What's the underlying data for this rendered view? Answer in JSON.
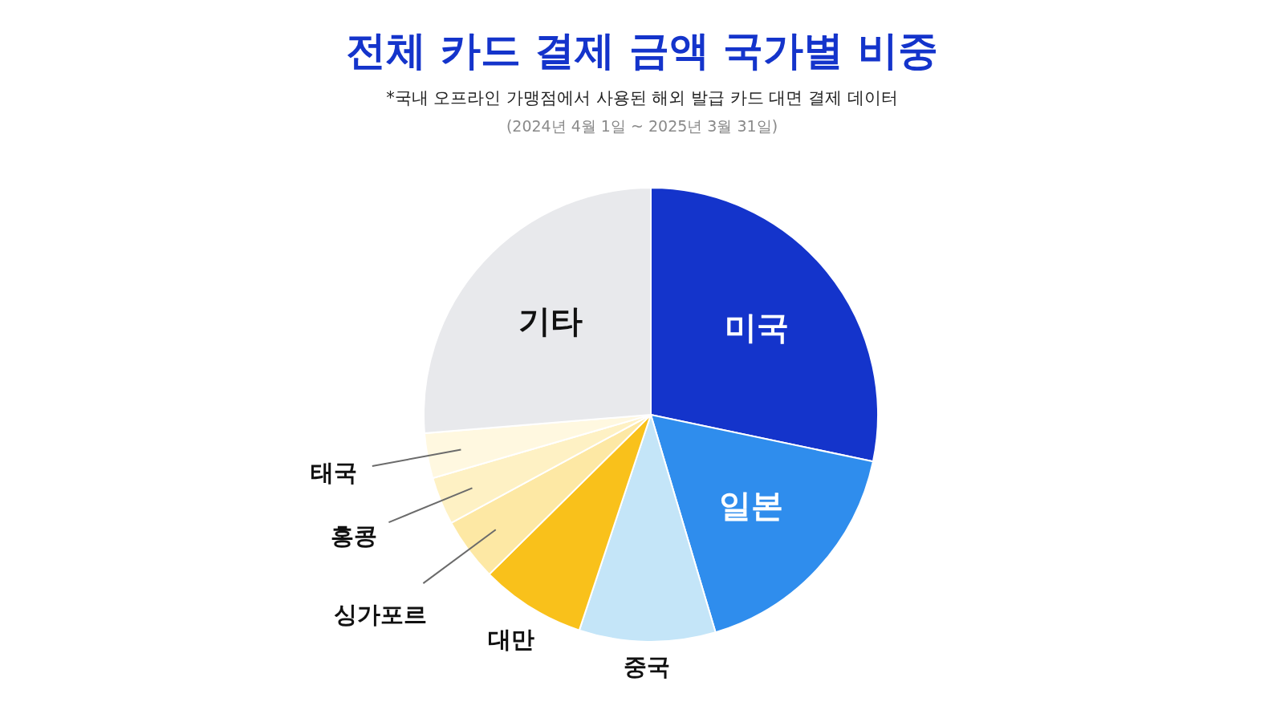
{
  "chart_data": {
    "type": "pie",
    "title": "전체 카드 결제 금액 국가별 비중",
    "subtitle": "*국내 오프라인 가맹점에서 사용된 해외 발급 카드 대면 결제 데이터",
    "annotations": [
      "(2024년 4월 1일 ~ 2025년 3월 31일)"
    ],
    "categories": [
      "미국",
      "일본",
      "중국",
      "대만",
      "싱가포르",
      "홍콩",
      "태국",
      "기타"
    ],
    "values": [
      28.3,
      17.1,
      9.7,
      7.5,
      4.5,
      3.4,
      3.2,
      26.3
    ],
    "colors": [
      "#1434cb",
      "#2f8ded",
      "#c4e5f8",
      "#f9c11b",
      "#fde8a4",
      "#fef1c4",
      "#fff8e0",
      "#e8e9ec"
    ]
  }
}
